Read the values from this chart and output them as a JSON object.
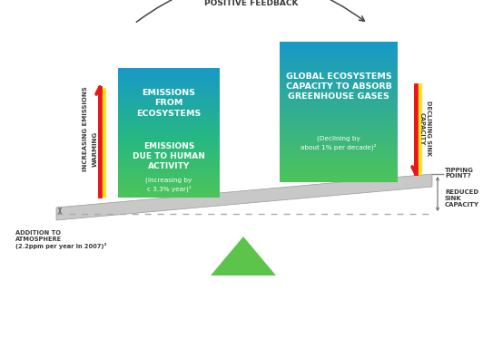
{
  "title": "POSITIVE FEEDBACK",
  "left_box_top_label": "EMISSIONS\nFROM\nECOSYSTEMS",
  "left_box_bottom_label1": "EMISSIONS\nDUE TO HUMAN\nACTIVITY",
  "left_box_bottom_label2": "(Increasing by\nc 3.3% year)¹",
  "right_box_label1": "GLOBAL ECOSYSTEMS\nCAPACITY TO ABSORB\nGREENHOUSE GASES",
  "right_box_label2": "(Declining by\nabout 1% per decade)²",
  "label_increasing": "INCREASING EMISSIONS",
  "label_warming": "WARMING",
  "label_declining": "DECLINING SINK\nCAPACITY",
  "label_tipping": "TIPPING\nPOINT?",
  "label_reduced1": "REDUCED",
  "label_reduced2": "SINK",
  "label_reduced3": "CAPACITY",
  "label_addition": "ADDITION TO\nATMOSPHERE\n(2.2ppm per year in 2007)²",
  "bg_color": "#ffffff",
  "col_top_blue": "#1899c8",
  "col_mid_teal": "#26b882",
  "col_bot_green": "#4dc45a",
  "col_green2": "#52c94e",
  "triangle_color": "#5cc44a",
  "beam_color_top": "#d0d0d0",
  "beam_color_bot": "#aaaaaa",
  "arrow_red": "#e8181a",
  "arrow_yellow": "#f9e526",
  "text_dark": "#3a3a3a",
  "text_dark2": "#444444",
  "dash_color": "#aaaaaa",
  "arc_color": "#444444",
  "line_gray": "#888888"
}
